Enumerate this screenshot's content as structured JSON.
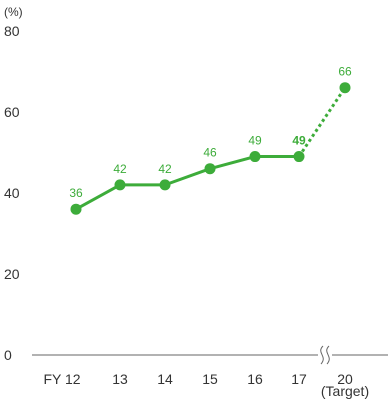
{
  "chart_data": {
    "type": "line",
    "y_unit_label": "(%)",
    "ylim": [
      0,
      80
    ],
    "yticks": [
      "0",
      "20",
      "40",
      "60",
      "80"
    ],
    "grid": false,
    "x": [
      "FY 12",
      "13",
      "14",
      "15",
      "16",
      "17",
      "20"
    ],
    "x_sublabel": "(Target)",
    "values": [
      36,
      42,
      42,
      46,
      49,
      49,
      66
    ],
    "data_labels": [
      "36",
      "42",
      "42",
      "46",
      "49",
      "49",
      "66"
    ],
    "actual_segment_end_index": 5,
    "projected_segment": {
      "from_index": 5,
      "to_index": 6,
      "style": "dotted"
    },
    "axis_break_between": [
      "17",
      "20"
    ],
    "colors": {
      "series": "#3dac3a",
      "axis": "#666666",
      "text": "#333333"
    }
  }
}
